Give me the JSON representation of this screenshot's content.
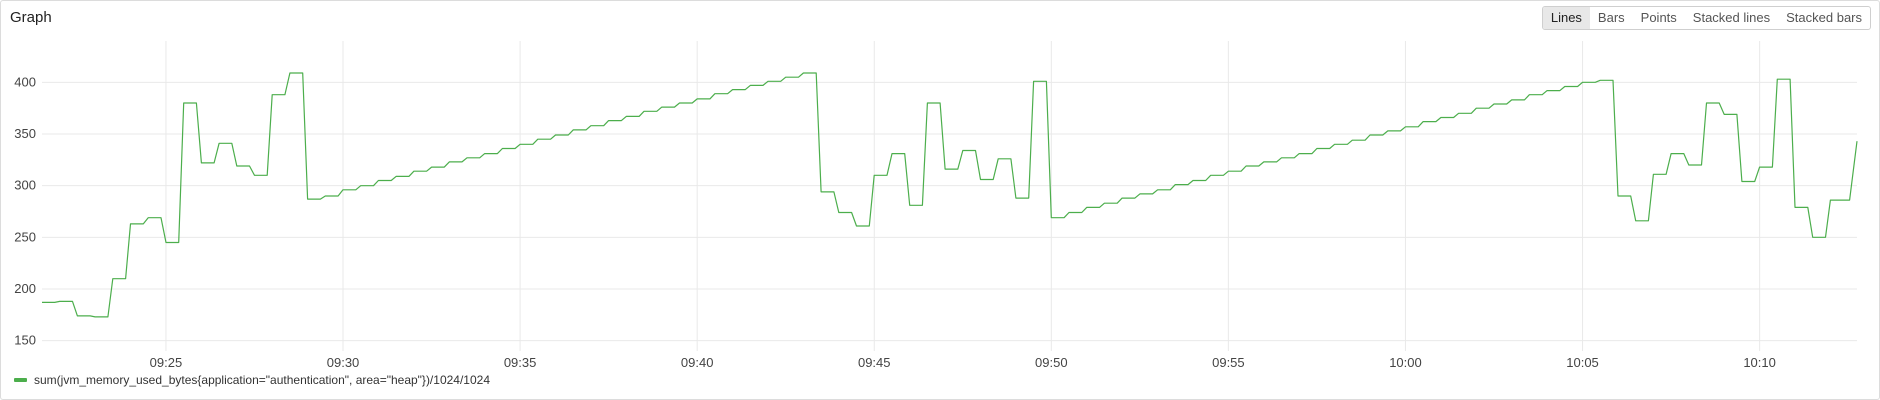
{
  "panel": {
    "title": "Graph"
  },
  "modes": [
    {
      "label": "Lines",
      "active": true
    },
    {
      "label": "Bars",
      "active": false
    },
    {
      "label": "Points",
      "active": false
    },
    {
      "label": "Stacked lines",
      "active": false
    },
    {
      "label": "Stacked bars",
      "active": false
    }
  ],
  "colors": {
    "series": "#4cae4c",
    "grid": "#e9e9e9"
  },
  "chart_data": {
    "type": "line",
    "title": "",
    "xlabel": "",
    "ylabel": "",
    "x_ticks": [
      "09:25",
      "09:30",
      "09:35",
      "09:40",
      "09:45",
      "09:50",
      "09:55",
      "10:00",
      "10:05",
      "10:10"
    ],
    "y_ticks": [
      150,
      200,
      250,
      300,
      350,
      400
    ],
    "xlim": [
      "09:21:30",
      "10:12:45"
    ],
    "ylim": [
      140,
      440
    ],
    "grid": true,
    "legend_position": "bottom-left",
    "series": [
      {
        "name": "sum(jvm_memory_used_bytes{application=\"authentication\", area=\"heap\"})/1024/1024",
        "points": [
          [
            "09:21:30",
            187
          ],
          [
            "09:22:00",
            188
          ],
          [
            "09:22:30",
            174
          ],
          [
            "09:23:00",
            173
          ],
          [
            "09:23:30",
            210
          ],
          [
            "09:24:00",
            263
          ],
          [
            "09:24:30",
            269
          ],
          [
            "09:25:00",
            245
          ],
          [
            "09:25:30",
            380
          ],
          [
            "09:26:00",
            322
          ],
          [
            "09:26:30",
            341
          ],
          [
            "09:27:00",
            319
          ],
          [
            "09:27:30",
            310
          ],
          [
            "09:28:00",
            388
          ],
          [
            "09:28:30",
            409
          ],
          [
            "09:29:00",
            287
          ],
          [
            "09:29:30",
            290
          ],
          [
            "09:30:00",
            296
          ],
          [
            "09:30:30",
            300
          ],
          [
            "09:31:00",
            305
          ],
          [
            "09:31:30",
            309
          ],
          [
            "09:32:00",
            314
          ],
          [
            "09:32:30",
            318
          ],
          [
            "09:33:00",
            323
          ],
          [
            "09:33:30",
            327
          ],
          [
            "09:34:00",
            331
          ],
          [
            "09:34:30",
            336
          ],
          [
            "09:35:00",
            340
          ],
          [
            "09:35:30",
            345
          ],
          [
            "09:36:00",
            349
          ],
          [
            "09:36:30",
            354
          ],
          [
            "09:37:00",
            358
          ],
          [
            "09:37:30",
            363
          ],
          [
            "09:38:00",
            367
          ],
          [
            "09:38:30",
            372
          ],
          [
            "09:39:00",
            376
          ],
          [
            "09:39:30",
            380
          ],
          [
            "09:40:00",
            384
          ],
          [
            "09:40:30",
            389
          ],
          [
            "09:41:00",
            393
          ],
          [
            "09:41:30",
            397
          ],
          [
            "09:42:00",
            401
          ],
          [
            "09:42:30",
            405
          ],
          [
            "09:43:00",
            409
          ],
          [
            "09:43:30",
            294
          ],
          [
            "09:44:00",
            274
          ],
          [
            "09:44:30",
            261
          ],
          [
            "09:45:00",
            310
          ],
          [
            "09:45:30",
            331
          ],
          [
            "09:46:00",
            281
          ],
          [
            "09:46:30",
            380
          ],
          [
            "09:47:00",
            316
          ],
          [
            "09:47:30",
            334
          ],
          [
            "09:48:00",
            306
          ],
          [
            "09:48:30",
            326
          ],
          [
            "09:49:00",
            288
          ],
          [
            "09:49:30",
            401
          ],
          [
            "09:50:00",
            269
          ],
          [
            "09:50:30",
            274
          ],
          [
            "09:51:00",
            279
          ],
          [
            "09:51:30",
            283
          ],
          [
            "09:52:00",
            288
          ],
          [
            "09:52:30",
            292
          ],
          [
            "09:53:00",
            296
          ],
          [
            "09:53:30",
            301
          ],
          [
            "09:54:00",
            305
          ],
          [
            "09:54:30",
            310
          ],
          [
            "09:55:00",
            314
          ],
          [
            "09:55:30",
            319
          ],
          [
            "09:56:00",
            323
          ],
          [
            "09:56:30",
            327
          ],
          [
            "09:57:00",
            331
          ],
          [
            "09:57:30",
            336
          ],
          [
            "09:58:00",
            340
          ],
          [
            "09:58:30",
            344
          ],
          [
            "09:59:00",
            349
          ],
          [
            "09:59:30",
            353
          ],
          [
            "10:00:00",
            357
          ],
          [
            "10:00:30",
            362
          ],
          [
            "10:01:00",
            366
          ],
          [
            "10:01:30",
            370
          ],
          [
            "10:02:00",
            375
          ],
          [
            "10:02:30",
            379
          ],
          [
            "10:03:00",
            383
          ],
          [
            "10:03:30",
            388
          ],
          [
            "10:04:00",
            392
          ],
          [
            "10:04:30",
            396
          ],
          [
            "10:05:00",
            400
          ],
          [
            "10:05:30",
            402
          ],
          [
            "10:06:00",
            290
          ],
          [
            "10:06:30",
            266
          ],
          [
            "10:07:00",
            311
          ],
          [
            "10:07:30",
            331
          ],
          [
            "10:08:00",
            320
          ],
          [
            "10:08:30",
            380
          ],
          [
            "10:09:00",
            369
          ],
          [
            "10:09:30",
            304
          ],
          [
            "10:10:00",
            318
          ],
          [
            "10:10:30",
            403
          ],
          [
            "10:11:00",
            279
          ],
          [
            "10:11:30",
            250
          ],
          [
            "10:12:00",
            286
          ],
          [
            "10:12:45",
            343
          ]
        ]
      }
    ]
  }
}
